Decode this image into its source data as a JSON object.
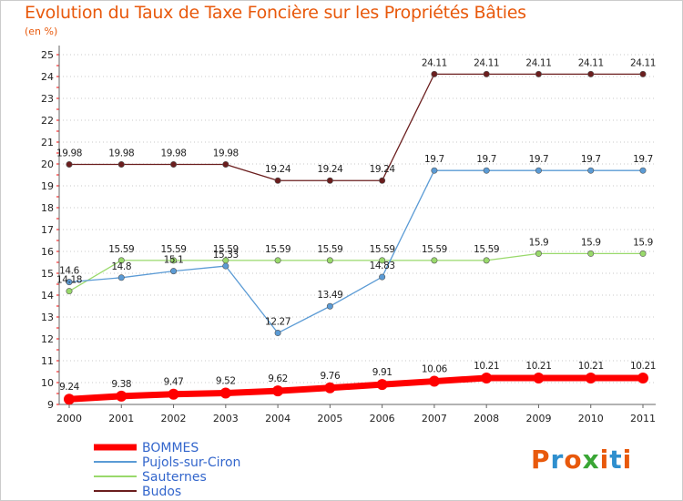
{
  "title": "Evolution du Taux de Taxe Foncière sur les Propriétés Bâties",
  "unit": "(en %)",
  "logo": {
    "text": "Proxiti",
    "colors": [
      "#e8590c",
      "#2f8fce",
      "#e8590c",
      "#3aa635",
      "#e8590c",
      "#2f8fce",
      "#e8590c"
    ]
  },
  "chart_data": {
    "type": "line",
    "x": [
      "2000",
      "2001",
      "2002",
      "2003",
      "2004",
      "2005",
      "2006",
      "2007",
      "2008",
      "2009",
      "2010",
      "2011"
    ],
    "ylim": [
      9,
      25
    ],
    "yticks": [
      9,
      10,
      11,
      12,
      13,
      14,
      15,
      16,
      17,
      18,
      19,
      20,
      21,
      22,
      23,
      24,
      25
    ],
    "ytick_labels": [
      "9",
      "10",
      "11",
      "12",
      "13",
      "14",
      "15",
      "16",
      "17",
      "18",
      "19",
      "20",
      "21",
      "22",
      "23",
      "24",
      "25"
    ],
    "grid": "horizontal-dotted",
    "legend_position": "bottom-left",
    "series": [
      {
        "name": "BOMMES",
        "color": "#ff0000",
        "label_color": "#3366cc",
        "values": [
          9.24,
          9.38,
          9.47,
          9.52,
          9.62,
          9.76,
          9.91,
          10.06,
          10.21,
          10.21,
          10.21,
          10.21
        ],
        "labels": [
          "9.24",
          "9.38",
          "9.47",
          "9.52",
          "9.62",
          "9.76",
          "9.91",
          "10.06",
          "10.21",
          "10.21",
          "10.21",
          "10.21"
        ]
      },
      {
        "name": "Pujols-sur-Ciron",
        "color": "#5b9bd5",
        "label_color": "#3366cc",
        "values": [
          14.6,
          14.8,
          15.1,
          15.33,
          12.27,
          13.49,
          14.83,
          19.7,
          19.7,
          19.7,
          19.7,
          19.7
        ],
        "labels": [
          "14.6",
          "14.8",
          "15.1",
          "15.33",
          "12.27",
          "13.49",
          "14.83",
          "19.7",
          "19.7",
          "19.7",
          "19.7",
          "19.7"
        ]
      },
      {
        "name": "Sauternes",
        "color": "#99d96b",
        "label_color": "#3366cc",
        "values": [
          14.18,
          15.59,
          15.59,
          15.59,
          15.59,
          15.59,
          15.59,
          15.59,
          15.59,
          15.9,
          15.9,
          15.9
        ],
        "labels": [
          "14.18",
          "15.59",
          "15.59",
          "15.59",
          "15.59",
          "15.59",
          "15.59",
          "15.59",
          "15.59",
          "15.9",
          "15.9",
          "15.9"
        ]
      },
      {
        "name": "Budos",
        "color": "#6b1e1e",
        "label_color": "#3366cc",
        "values": [
          19.98,
          19.98,
          19.98,
          19.98,
          19.24,
          19.24,
          19.24,
          24.11,
          24.11,
          24.11,
          24.11,
          24.11
        ],
        "labels": [
          "19.98",
          "19.98",
          "19.98",
          "19.98",
          "19.24",
          "19.24",
          "19.24",
          "24.11",
          "24.11",
          "24.11",
          "24.11",
          "24.11"
        ]
      }
    ]
  }
}
